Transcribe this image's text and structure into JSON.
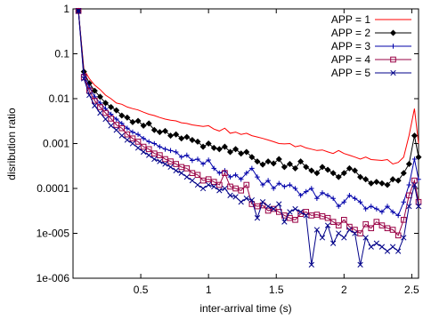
{
  "chart_data": {
    "type": "line",
    "title": "",
    "xlabel": "inter-arrival time (s)",
    "ylabel": "disribution ratio",
    "xlim": [
      0,
      2.55
    ],
    "ylim": [
      1e-06,
      1
    ],
    "yscale": "log",
    "grid": false,
    "legend_position": "top-right",
    "x_ticks": [
      0.5,
      1,
      1.5,
      2,
      2.5
    ],
    "x_tick_labels": [
      "0.5",
      "1",
      "1.5",
      "2",
      "2.5"
    ],
    "y_ticks": [
      1e-06,
      1e-05,
      0.0001,
      0.001,
      0.01,
      0.1,
      1
    ],
    "y_tick_labels": [
      "1e-006",
      "1e-005",
      "0.0001",
      "0.001",
      "0.01",
      "0.1",
      "1"
    ],
    "x": [
      0.04,
      0.08,
      0.12,
      0.16,
      0.2,
      0.24,
      0.28,
      0.32,
      0.36,
      0.4,
      0.44,
      0.48,
      0.52,
      0.56,
      0.6,
      0.64,
      0.68,
      0.72,
      0.76,
      0.8,
      0.84,
      0.88,
      0.92,
      0.96,
      1.0,
      1.04,
      1.08,
      1.12,
      1.16,
      1.2,
      1.24,
      1.28,
      1.32,
      1.36,
      1.4,
      1.44,
      1.48,
      1.52,
      1.56,
      1.6,
      1.64,
      1.68,
      1.72,
      1.76,
      1.8,
      1.84,
      1.88,
      1.92,
      1.96,
      2.0,
      2.04,
      2.08,
      2.12,
      2.16,
      2.2,
      2.24,
      2.28,
      2.32,
      2.36,
      2.4,
      2.44,
      2.48,
      2.52,
      2.55
    ],
    "series": [
      {
        "name": "APP = 1",
        "color": "#ff0000",
        "marker": "none",
        "values": [
          0.9,
          0.045,
          0.028,
          0.02,
          0.016,
          0.012,
          0.01,
          0.008,
          0.0075,
          0.0065,
          0.006,
          0.0056,
          0.005,
          0.0045,
          0.0042,
          0.0038,
          0.0035,
          0.0033,
          0.0032,
          0.0029,
          0.0028,
          0.0026,
          0.0025,
          0.0024,
          0.0025,
          0.0021,
          0.0019,
          0.0022,
          0.0017,
          0.0018,
          0.0016,
          0.0017,
          0.0015,
          0.0014,
          0.0013,
          0.0012,
          0.0011,
          0.001,
          0.00098,
          0.001,
          0.00085,
          0.0009,
          0.0008,
          0.00075,
          0.0007,
          0.00072,
          0.00065,
          0.0006,
          0.0007,
          0.0006,
          0.00055,
          0.0005,
          0.00045,
          0.0005,
          0.00044,
          0.00043,
          0.00042,
          0.00044,
          0.00035,
          0.00038,
          0.0005,
          0.0015,
          0.006,
          0.001
        ]
      },
      {
        "name": "APP = 2",
        "color": "#000000",
        "marker": "diamond",
        "values": [
          0.9,
          0.04,
          0.022,
          0.015,
          0.011,
          0.008,
          0.0065,
          0.0055,
          0.0042,
          0.0038,
          0.003,
          0.0032,
          0.0025,
          0.0028,
          0.002,
          0.0018,
          0.0019,
          0.0015,
          0.0016,
          0.0013,
          0.0014,
          0.0012,
          0.0011,
          0.00085,
          0.001,
          0.0008,
          0.00075,
          0.00085,
          0.00065,
          0.00075,
          0.0006,
          0.00065,
          0.0005,
          0.0004,
          0.00034,
          0.0004,
          0.00036,
          0.00045,
          0.0003,
          0.00035,
          0.00028,
          0.0004,
          0.0003,
          0.00025,
          0.00022,
          0.0003,
          0.00026,
          0.00022,
          0.00018,
          0.00022,
          0.00028,
          0.00025,
          0.00018,
          0.00016,
          0.00013,
          0.00014,
          0.00013,
          0.00012,
          0.00016,
          0.00015,
          0.00022,
          0.00035,
          0.0015,
          0.0005
        ]
      },
      {
        "name": "APP = 3",
        "color": "#0000aa",
        "marker": "plus",
        "values": [
          0.9,
          0.035,
          0.018,
          0.011,
          0.008,
          0.006,
          0.0045,
          0.0035,
          0.0028,
          0.0022,
          0.0018,
          0.0016,
          0.0013,
          0.0011,
          0.001,
          0.00085,
          0.00075,
          0.0007,
          0.00065,
          0.0005,
          0.00055,
          0.00042,
          0.00045,
          0.00035,
          0.00043,
          0.00028,
          0.00022,
          0.00025,
          0.00018,
          0.0002,
          0.00016,
          0.00022,
          0.00028,
          0.00018,
          0.00012,
          0.00015,
          0.0001,
          0.00013,
          0.00011,
          0.00012,
          0.0001,
          7e-05,
          8.5e-05,
          0.0001,
          6e-05,
          8e-05,
          7e-05,
          6e-05,
          4e-05,
          5e-05,
          7e-05,
          6e-05,
          5e-05,
          3.5e-05,
          4e-05,
          3.5e-05,
          3e-05,
          4e-05,
          3e-05,
          2.5e-05,
          5e-05,
          0.00012,
          0.00045,
          0.00016
        ]
      },
      {
        "name": "APP = 4",
        "color": "#990044",
        "marker": "square",
        "values": [
          0.9,
          0.03,
          0.015,
          0.009,
          0.0065,
          0.0048,
          0.0036,
          0.0026,
          0.0022,
          0.0016,
          0.0013,
          0.0011,
          0.00085,
          0.00075,
          0.0006,
          0.00055,
          0.00045,
          0.0004,
          0.00035,
          0.0003,
          0.00028,
          0.00022,
          0.0002,
          0.00015,
          0.00016,
          0.00014,
          0.00012,
          0.00022,
          0.00011,
          0.0001,
          9e-05,
          0.00012,
          4.5e-05,
          4e-05,
          4.2e-05,
          3.2e-05,
          3.5e-05,
          3e-05,
          2.5e-05,
          2.2e-05,
          2e-05,
          2.7e-05,
          3e-05,
          2.5e-05,
          2.6e-05,
          2.4e-05,
          2.2e-05,
          1.8e-05,
          1.5e-05,
          2e-05,
          1.4e-05,
          1.2e-05,
          1e-05,
          1.6e-05,
          1.3e-05,
          1.8e-05,
          1.5e-05,
          1.3e-05,
          1.2e-05,
          9e-06,
          2e-05,
          7e-05,
          0.00015,
          5e-05
        ]
      },
      {
        "name": "APP = 5",
        "color": "#000088",
        "marker": "x",
        "values": [
          0.9,
          0.028,
          0.012,
          0.007,
          0.0048,
          0.0035,
          0.0025,
          0.002,
          0.0015,
          0.0012,
          0.001,
          0.0008,
          0.00065,
          0.00055,
          0.00045,
          0.0004,
          0.00035,
          0.0003,
          0.00025,
          0.00022,
          0.00018,
          0.00015,
          0.00012,
          0.0001,
          0.00012,
          0.00011,
          9e-05,
          0.0001,
          7e-05,
          6.5e-05,
          5e-05,
          6e-05,
          5.5e-05,
          2.2e-05,
          5e-05,
          4e-05,
          3.5e-05,
          4.5e-05,
          1.8e-05,
          3e-05,
          3.5e-05,
          3e-05,
          2.5e-05,
          2e-06,
          1.2e-05,
          8e-06,
          1.5e-05,
          6e-06,
          1e-05,
          8e-06,
          1.2e-05,
          1e-05,
          2e-06,
          8e-06,
          5e-06,
          6e-06,
          5e-06,
          4e-06,
          5e-06,
          4e-06,
          8e-06,
          4e-05,
          0.00012,
          4e-05
        ]
      }
    ]
  }
}
